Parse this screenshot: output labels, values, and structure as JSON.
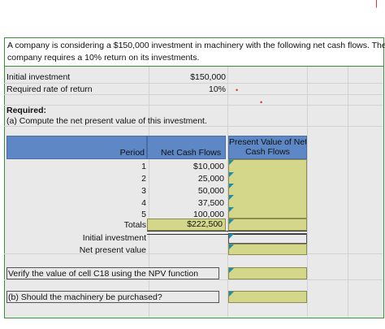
{
  "problem": {
    "line1": "A company is considering a $150,000 investment in machinery with the following net cash flows. The",
    "line2": "company requires a 10% return on its investments."
  },
  "inputs": {
    "initial_label": "Initial investment",
    "initial_value": "$150,000",
    "rate_label": "Required rate of return",
    "rate_value": "10%"
  },
  "required": {
    "heading": "Required:",
    "part_a": "(a) Compute the net present value of this investment."
  },
  "table": {
    "col_period": "Period",
    "col_cash": "Net Cash Flows",
    "col_pv_line1": "Present Value of Net",
    "col_pv_line2": "Cash Flows",
    "rows": [
      {
        "period": "1",
        "cash": "$10,000"
      },
      {
        "period": "2",
        "cash": "25,000"
      },
      {
        "period": "3",
        "cash": "50,000"
      },
      {
        "period": "4",
        "cash": "37,500"
      },
      {
        "period": "5",
        "cash": "100,000"
      }
    ],
    "totals_label": "Totals",
    "totals_value": "$222,500",
    "initial_label": "Initial investment",
    "npv_label": "Net present value"
  },
  "verify_text": "Verify the value of cell C18 using the NPV function",
  "part_b": "(b) Should the machinery be purchased?",
  "colors": {
    "header_blue": "#5d87c5",
    "input_yellow": "#d4d78a",
    "frame_green": "#3c8f3c",
    "marker_red": "#d92b2b",
    "corner_teal": "#1f8fa8"
  }
}
